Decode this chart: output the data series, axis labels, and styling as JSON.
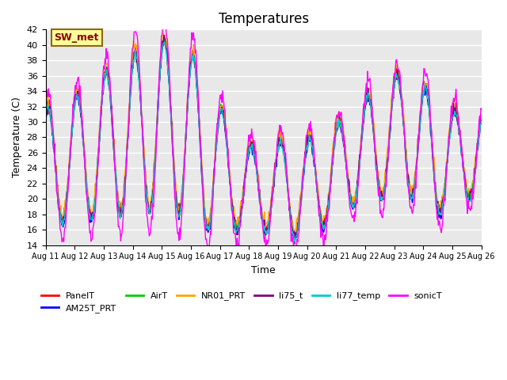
{
  "title": "Temperatures",
  "xlabel": "Time",
  "ylabel": "Temperature (C)",
  "ylim": [
    14,
    42
  ],
  "xlim": [
    0,
    15
  ],
  "xtick_labels": [
    "Aug 11",
    "Aug 12",
    "Aug 13",
    "Aug 14",
    "Aug 15",
    "Aug 16",
    "Aug 17",
    "Aug 18",
    "Aug 19",
    "Aug 20",
    "Aug 21",
    "Aug 22",
    "Aug 23",
    "Aug 24",
    "Aug 25",
    "Aug 26"
  ],
  "annotation_text": "SW_met",
  "annotation_bg": "#FFFF99",
  "annotation_border": "#8B6914",
  "annotation_text_color": "#8B0000",
  "line_colors": {
    "PanelT": "#FF0000",
    "AM25T_PRT": "#0000FF",
    "AirT": "#00CC00",
    "NR01_PRT": "#FFA500",
    "li75_t": "#800080",
    "li77_temp": "#00CCCC",
    "sonicT": "#FF00FF"
  },
  "bg_color": "#E8E8E8",
  "grid_color": "#FFFFFF",
  "title_fontsize": 12
}
